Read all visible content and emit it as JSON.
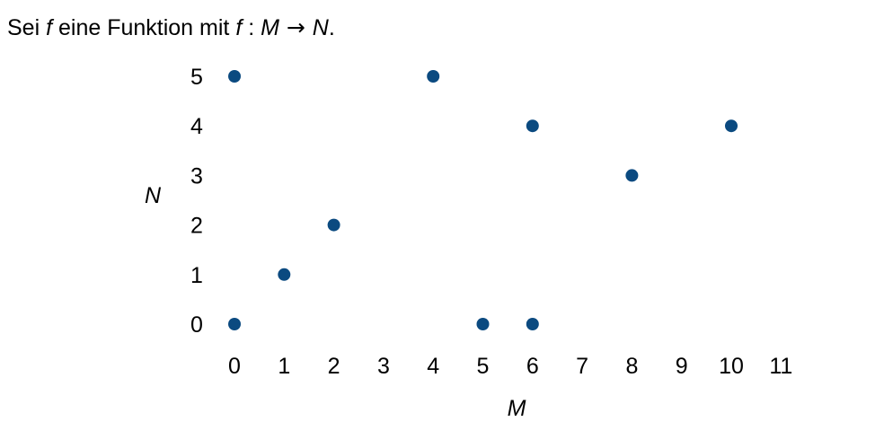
{
  "intro": {
    "prefix": "Sei ",
    "f1": "f",
    "middle": " eine Funktion mit ",
    "f2": "f",
    "colon": " : ",
    "domain_set": "M",
    "arrow": " → ",
    "codomain_set": "N",
    "suffix": "."
  },
  "chart_data": {
    "type": "scatter",
    "title": "",
    "xlabel": "M",
    "ylabel": "N",
    "x_ticks": [
      "0",
      "1",
      "2",
      "3",
      "4",
      "5",
      "6",
      "7",
      "8",
      "9",
      "10",
      "11"
    ],
    "y_ticks": [
      "0",
      "1",
      "2",
      "3",
      "4",
      "5"
    ],
    "grid": false,
    "point_color": "#0b4a80",
    "points": [
      {
        "x": 0,
        "y": 5
      },
      {
        "x": 0,
        "y": 0
      },
      {
        "x": 1,
        "y": 1
      },
      {
        "x": 2,
        "y": 2
      },
      {
        "x": 4,
        "y": 5
      },
      {
        "x": 5,
        "y": 0
      },
      {
        "x": 6,
        "y": 4
      },
      {
        "x": 6,
        "y": 0
      },
      {
        "x": 8,
        "y": 3
      },
      {
        "x": 10,
        "y": 4
      }
    ]
  }
}
